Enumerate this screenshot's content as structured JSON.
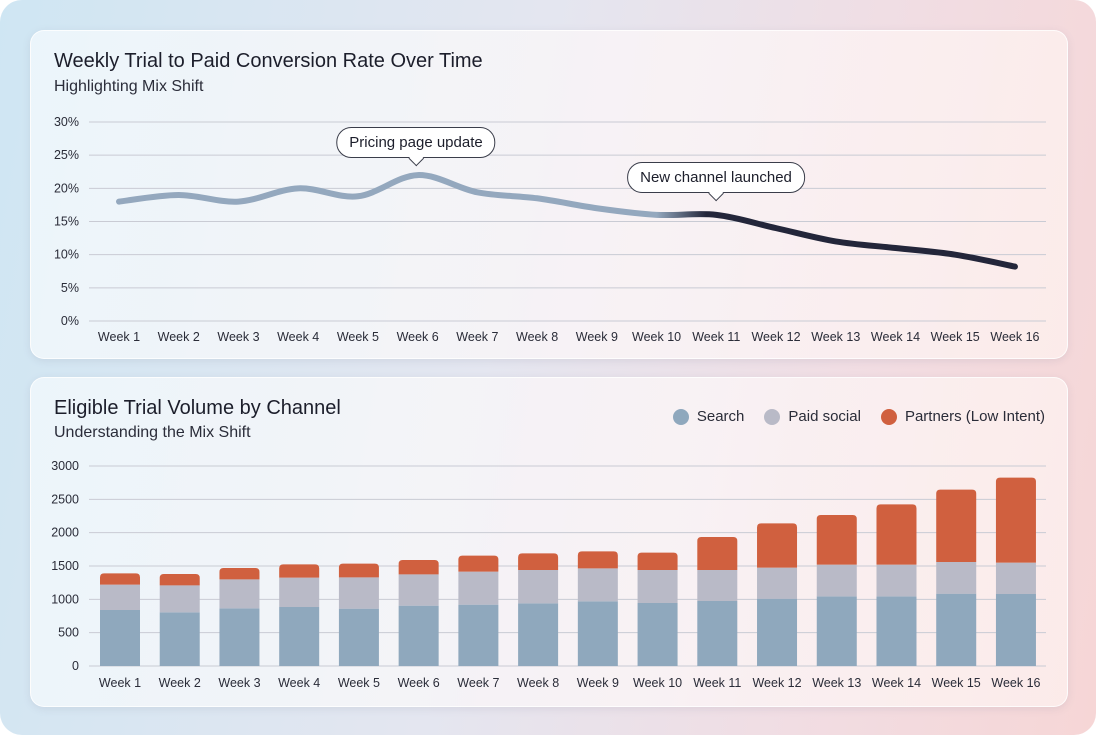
{
  "chart_data": [
    {
      "type": "line",
      "title": "Weekly Trial to Paid Conversion Rate Over Time",
      "subtitle": "Highlighting Mix Shift",
      "categories": [
        "Week 1",
        "Week 2",
        "Week 3",
        "Week 4",
        "Week 5",
        "Week 6",
        "Week 7",
        "Week 8",
        "Week 9",
        "Week 10",
        "Week 11",
        "Week 12",
        "Week 13",
        "Week 14",
        "Week 15",
        "Week 16"
      ],
      "values": [
        18,
        19,
        18,
        20,
        18.8,
        22,
        19.4,
        18.5,
        17,
        16,
        16,
        14,
        12,
        11,
        10,
        8.2
      ],
      "ylim": [
        0,
        30
      ],
      "yticks": [
        "0%",
        "5%",
        "10%",
        "15%",
        "20%",
        "25%",
        "30%"
      ],
      "ytick_values": [
        0,
        5,
        10,
        15,
        20,
        25,
        30
      ],
      "grid": true,
      "colors": {
        "before": "#94a8be",
        "after": "#23263a"
      },
      "annotations": [
        {
          "text": "Pricing page update",
          "category": "Week 6"
        },
        {
          "text": "New channel launched",
          "category": "Week 11"
        }
      ]
    },
    {
      "type": "bar",
      "stacked": true,
      "title": "Eligible Trial Volume by Channel",
      "subtitle": "Understanding the Mix Shift",
      "categories": [
        "Week 1",
        "Week 2",
        "Week 3",
        "Week 4",
        "Week 5",
        "Week 6",
        "Week 7",
        "Week 8",
        "Week 9",
        "Week 10",
        "Week 11",
        "Week 12",
        "Week 13",
        "Week 14",
        "Week 15",
        "Week 16"
      ],
      "series": [
        {
          "name": "Search",
          "color": "#8fa8bd",
          "values": [
            840,
            805,
            865,
            885,
            860,
            905,
            920,
            940,
            970,
            945,
            975,
            1010,
            1045,
            1045,
            1085,
            1080
          ]
        },
        {
          "name": "Paid social",
          "color": "#b9bac7",
          "values": [
            380,
            405,
            435,
            440,
            470,
            470,
            495,
            500,
            495,
            495,
            465,
            465,
            475,
            475,
            475,
            470
          ]
        },
        {
          "name": "Partners (Low Intent)",
          "color": "#d0603f",
          "values": [
            170,
            170,
            170,
            200,
            205,
            215,
            240,
            250,
            255,
            260,
            495,
            665,
            745,
            905,
            1085,
            1275
          ]
        }
      ],
      "ylim": [
        0,
        3000
      ],
      "yticks": [
        "0",
        "500",
        "1000",
        "1500",
        "2000",
        "2500",
        "3000"
      ],
      "ytick_values": [
        0,
        500,
        1000,
        1500,
        2000,
        2500,
        3000
      ],
      "grid": true,
      "legend": "top-right"
    }
  ]
}
